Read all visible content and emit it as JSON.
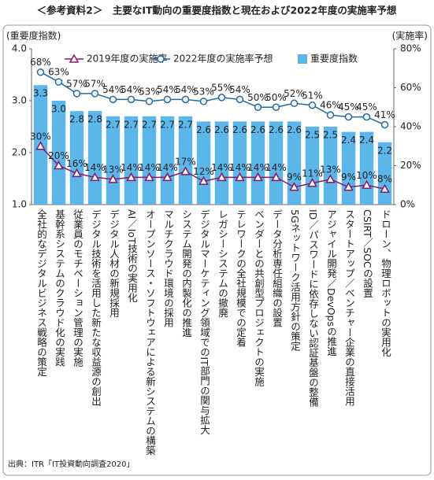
{
  "chart_data": {
    "type": "bar",
    "title": "＜参考資料2＞　主要なIT動向の重要度指数と現在および2022年度の実施率予想",
    "y_label": "(重要度指数)",
    "y2_label": "(実施率)",
    "source": "出典：ITR「IT投資動向調査2020」",
    "categories": [
      "全社的なデジタルビジネス戦略の策定",
      "基幹系システムのクラウド化の実践",
      "従業員のモチベーション管理の実施",
      "デジタル技術を活用した新たな収益源の創出",
      "デジタル人材の新規採用",
      "AI／IoT技術の実用化",
      "オープンソース・ソフトウェアによる新システムの構築",
      "マルチクラウド環境の採用",
      "システム開発の内製化の推進",
      "デジタルマーケティング領域でのIT部門の関与拡大",
      "レガシーシステムの撤廃",
      "テレワークの全社規模での定着",
      "ベンダーとの共創型プロジェクトの実施",
      "データ分析専任組織の設置",
      "5Gネットワーク活用方針の策定",
      "ID／パスワードに依存しない認証基盤の整備",
      "アジャイル開発／DevOpsの推進",
      "スタートアップ／ベンチャー企業の直接活用",
      "CSIRT／SOCの設置",
      "ドローン、物理ロボットの実用化"
    ],
    "series": [
      {
        "name": "2019年度の実施率",
        "type": "line",
        "axis": "y2",
        "marker": "triangle",
        "color": "#8b1a5e",
        "values": [
          30,
          20,
          16,
          14,
          13,
          14,
          14,
          14,
          17,
          12,
          14,
          14,
          14,
          14,
          9,
          11,
          13,
          9,
          10,
          8
        ],
        "value_labels": [
          "30%",
          "20%",
          "16%",
          "14%",
          "13%",
          "14%",
          "14%",
          "14%",
          "17%",
          "12%",
          "14%",
          "14%",
          "14%",
          "14%",
          "9%",
          "11%",
          "13%",
          "9%",
          "10%",
          "8%"
        ]
      },
      {
        "name": "2022年度の実施率予想",
        "type": "line",
        "axis": "y2",
        "marker": "circle",
        "color": "#1f6aa5",
        "values": [
          68,
          63,
          57,
          57,
          54,
          54,
          53,
          54,
          54,
          53,
          55,
          54,
          50,
          50,
          52,
          51,
          46,
          45,
          45,
          41
        ],
        "value_labels": [
          "68%",
          "63%",
          "57%",
          "57%",
          "54%",
          "54%",
          "53%",
          "54%",
          "54%",
          "53%",
          "55%",
          "54%",
          "50%",
          "50%",
          "52%",
          "51%",
          "46%",
          "45%",
          "45%",
          "41%"
        ]
      },
      {
        "name": "重要度指数",
        "type": "bar",
        "axis": "y",
        "color": "#5cb6ea",
        "values": [
          3.3,
          3.0,
          2.8,
          2.8,
          2.7,
          2.7,
          2.7,
          2.7,
          2.7,
          2.6,
          2.6,
          2.6,
          2.6,
          2.6,
          2.6,
          2.5,
          2.5,
          2.4,
          2.4,
          2.2
        ],
        "value_labels": [
          "3.3",
          "3.0",
          "2.8",
          "2.8",
          "2.7",
          "2.7",
          "2.7",
          "2.7",
          "2.7",
          "2.6",
          "2.6",
          "2.6",
          "2.6",
          "2.6",
          "2.6",
          "2.5",
          "2.5",
          "2.4",
          "2.4",
          "2.2"
        ]
      }
    ],
    "ylim": [
      1.0,
      4.0
    ],
    "yticks": [
      {
        "value": 1,
        "label": "1.0"
      },
      {
        "value": 2,
        "label": "2.0"
      },
      {
        "value": 3,
        "label": "3.0"
      },
      {
        "value": 4,
        "label": "4.0"
      }
    ],
    "y2lim": [
      0,
      80
    ],
    "y2ticks": [
      {
        "value": 0,
        "label": "0%"
      },
      {
        "value": 20,
        "label": "20%"
      },
      {
        "value": 40,
        "label": "40%"
      },
      {
        "value": 60,
        "label": "60%"
      },
      {
        "value": 80,
        "label": "80%"
      }
    ]
  }
}
